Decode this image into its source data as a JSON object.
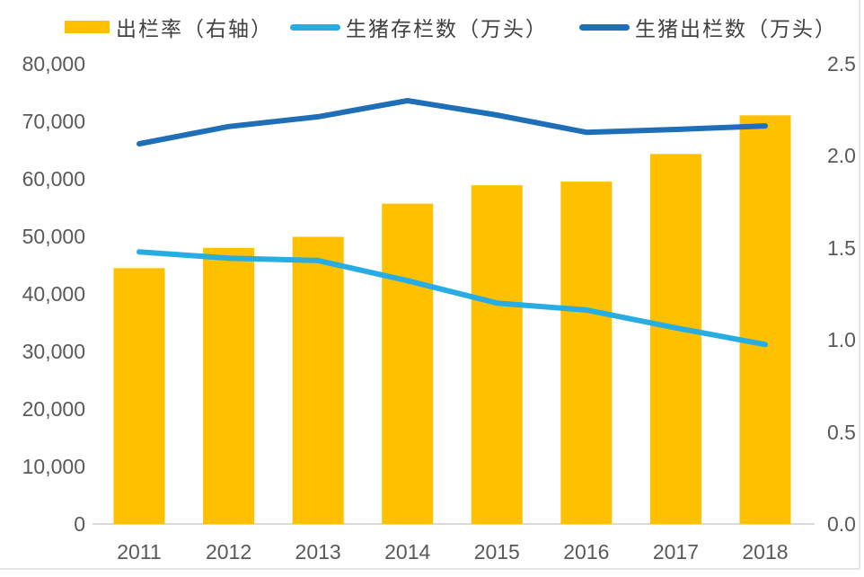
{
  "chart_data": {
    "type": "combo",
    "categories": [
      "2011",
      "2012",
      "2013",
      "2014",
      "2015",
      "2016",
      "2017",
      "2018"
    ],
    "series": [
      {
        "name": "出栏率（右轴）",
        "type": "bar",
        "axis": "right",
        "color": "#FFC000",
        "values": [
          1.39,
          1.5,
          1.56,
          1.74,
          1.84,
          1.86,
          2.01,
          2.22
        ]
      },
      {
        "name": "生猪存栏数（万头）",
        "type": "line",
        "axis": "left",
        "color": "#27ACE3",
        "values": [
          47300,
          46200,
          45800,
          42300,
          38400,
          37200,
          34100,
          31200
        ]
      },
      {
        "name": "生猪出栏数（万头）",
        "type": "line",
        "axis": "left",
        "color": "#1E6EB8",
        "values": [
          66100,
          69100,
          70800,
          73600,
          71100,
          68100,
          68600,
          69200
        ]
      }
    ],
    "left_axis": {
      "min": 0,
      "max": 80000,
      "tick_labels": [
        "0",
        "10,000",
        "20,000",
        "30,000",
        "40,000",
        "50,000",
        "60,000",
        "70,000",
        "80,000"
      ]
    },
    "right_axis": {
      "min": 0.0,
      "max": 2.5,
      "tick_labels": [
        "0.0",
        "0.5",
        "1.0",
        "1.5",
        "2.0",
        "2.5"
      ]
    },
    "legend_position": "top",
    "grid": false,
    "colors": {
      "axis_text": "#595959",
      "axis_line": "#D9D9D9",
      "frame_line": "#DDDDDD"
    }
  }
}
